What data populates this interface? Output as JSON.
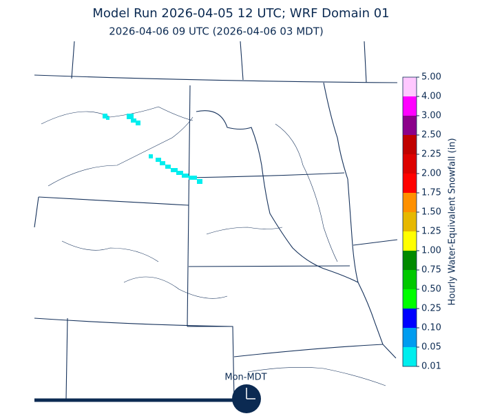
{
  "header": {
    "title": "Model Run 2026-04-05 12 UTC; WRF Domain 01",
    "subtitle": "2026-04-06 09 UTC  (2026-04-06 03 MDT)"
  },
  "colorbar": {
    "label": "Hourly Water-Equivalent Snowfall (in)",
    "ticks": [
      0.01,
      0.05,
      {
        "value": 0.1,
        "label": "0.10"
      },
      0.25,
      {
        "value": 0.5,
        "label": "0.50"
      },
      0.75,
      {
        "value": 1,
        "label": "1.00"
      },
      1.25,
      {
        "value": 1.5,
        "label": "1.50"
      },
      1.75,
      {
        "value": 2,
        "label": "2.00"
      },
      2.25,
      {
        "value": 2.5,
        "label": "2.50"
      },
      {
        "value": 3,
        "label": "3.00"
      },
      {
        "value": 4,
        "label": "4.00"
      },
      {
        "value": 5,
        "label": "5.00"
      }
    ],
    "colors": [
      "#00eeee",
      "#009cf0",
      "#0000ff",
      "#00ff00",
      "#00c800",
      "#008a00",
      "#ffff00",
      "#e6b800",
      "#ff9000",
      "#ff0000",
      "#dd0000",
      "#c00000",
      "#8b008b",
      "#ff00ff",
      "#ffc8ff"
    ]
  },
  "timeline": {
    "label": "Mon-MDT"
  }
}
